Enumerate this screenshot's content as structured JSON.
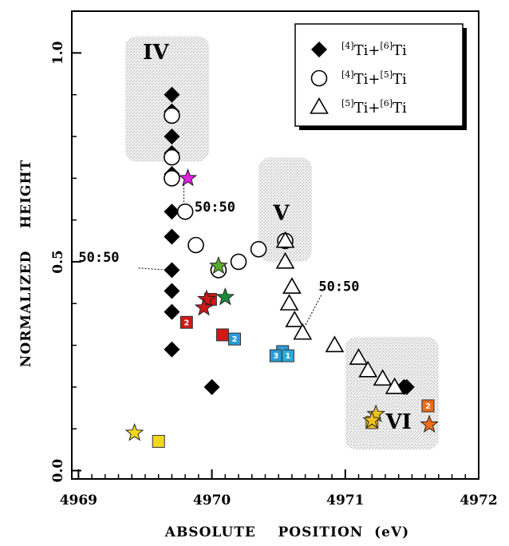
{
  "chart_data": {
    "type": "scatter",
    "xlabel": "ABSOLUTE    POSITION  (eV)",
    "ylabel": "NORMALIZED    HEIGHT",
    "xlim": [
      4968.95,
      4972.0
    ],
    "ylim": [
      -0.02,
      1.1
    ],
    "x_ticks": [
      {
        "value": 4969,
        "label": "4969"
      },
      {
        "value": 4970,
        "label": "4970"
      },
      {
        "value": 4971,
        "label": "4971"
      },
      {
        "value": 4972,
        "label": "4972"
      }
    ],
    "y_ticks": [
      {
        "value": 0.0,
        "label": "0.0"
      },
      {
        "value": 0.5,
        "label": "0.5"
      },
      {
        "value": 1.0,
        "label": "1.0"
      }
    ],
    "legend": {
      "placement": "top-right",
      "entries": [
        {
          "marker": "diamond",
          "pre1": "[4]",
          "t1": "Ti+",
          "pre2": "[6]",
          "t2": "Ti"
        },
        {
          "marker": "circle",
          "pre1": "[4]",
          "t1": "Ti+",
          "pre2": "[5]",
          "t2": "Ti"
        },
        {
          "marker": "triangle",
          "pre1": "[5]",
          "t1": "Ti+",
          "pre2": "[6]",
          "t2": "Ti"
        }
      ]
    },
    "regions": [
      {
        "label": "IV",
        "x": [
          4969.35,
          4969.98
        ],
        "y": [
          0.74,
          1.04
        ],
        "lx": 4969.58,
        "ly": 0.985
      },
      {
        "label": "V",
        "x": [
          4970.35,
          4970.75
        ],
        "y": [
          0.5,
          0.75
        ],
        "lx": 4970.52,
        "ly": 0.6
      },
      {
        "label": "VI",
        "x": [
          4971.0,
          4971.7
        ],
        "y": [
          0.05,
          0.32
        ],
        "lx": 4971.4,
        "ly": 0.1
      }
    ],
    "annotations": [
      {
        "text": "50:50",
        "x": 4969.87,
        "y": 0.62,
        "lx": 4969.79,
        "ly": 0.7,
        "lx2": 4969.79,
        "ly2": 0.63
      },
      {
        "text": "50:50",
        "x": 4969.0,
        "y": 0.5,
        "lx": 4969.45,
        "ly": 0.485,
        "lx2": 4969.68,
        "ly2": 0.48
      },
      {
        "text": "50:50",
        "x": 4970.8,
        "y": 0.43,
        "lx": 4970.82,
        "ly": 0.42,
        "lx2": 4970.67,
        "ly2": 0.33
      }
    ],
    "series": [
      {
        "name": "[4]Ti+[6]Ti",
        "marker": "diamond",
        "points": [
          [
            4969.7,
            0.9
          ],
          [
            4969.7,
            0.86
          ],
          [
            4969.7,
            0.8
          ],
          [
            4969.7,
            0.76
          ],
          [
            4969.7,
            0.71
          ],
          [
            4969.7,
            0.62
          ],
          [
            4969.7,
            0.56
          ],
          [
            4969.7,
            0.48
          ],
          [
            4969.7,
            0.43
          ],
          [
            4969.7,
            0.38
          ],
          [
            4969.7,
            0.29
          ],
          [
            4970.0,
            0.2
          ],
          [
            4971.46,
            0.2
          ],
          [
            4971.44,
            0.2
          ]
        ]
      },
      {
        "name": "[4]Ti+[5]Ti",
        "marker": "circle",
        "points": [
          [
            4969.7,
            0.85
          ],
          [
            4969.7,
            0.75
          ],
          [
            4969.7,
            0.7
          ],
          [
            4969.8,
            0.62
          ],
          [
            4969.88,
            0.54
          ],
          [
            4970.05,
            0.48
          ],
          [
            4970.2,
            0.5
          ],
          [
            4970.35,
            0.53
          ],
          [
            4970.55,
            0.55
          ]
        ]
      },
      {
        "name": "[5]Ti+[6]Ti",
        "marker": "triangle",
        "points": [
          [
            4970.55,
            0.55
          ],
          [
            4970.55,
            0.5
          ],
          [
            4970.6,
            0.44
          ],
          [
            4970.58,
            0.4
          ],
          [
            4970.62,
            0.36
          ],
          [
            4970.68,
            0.33
          ],
          [
            4970.92,
            0.3
          ],
          [
            4971.1,
            0.27
          ],
          [
            4971.17,
            0.24
          ],
          [
            4971.28,
            0.22
          ],
          [
            4971.37,
            0.2
          ]
        ]
      }
    ],
    "star_markers": [
      {
        "x": 4969.82,
        "y": 0.7,
        "color": "#e020e0"
      },
      {
        "x": 4970.05,
        "y": 0.49,
        "color": "#5aaa2a"
      },
      {
        "x": 4970.1,
        "y": 0.415,
        "color": "#1e8a3a"
      },
      {
        "x": 4969.96,
        "y": 0.41,
        "color": "#d01818"
      },
      {
        "x": 4969.94,
        "y": 0.39,
        "color": "#d01818"
      },
      {
        "x": 4969.42,
        "y": 0.09,
        "color": "#f0d820"
      },
      {
        "x": 4971.23,
        "y": 0.135,
        "color": "#f0c020"
      },
      {
        "x": 4971.2,
        "y": 0.12,
        "color": "#f0c020"
      },
      {
        "x": 4971.63,
        "y": 0.11,
        "color": "#f06a18"
      }
    ],
    "square_markers": [
      {
        "x": 4969.99,
        "y": 0.41,
        "color": "#d01818",
        "label": ""
      },
      {
        "x": 4969.81,
        "y": 0.355,
        "color": "#d01818",
        "label": "2"
      },
      {
        "x": 4970.08,
        "y": 0.325,
        "color": "#d01818",
        "label": ""
      },
      {
        "x": 4970.17,
        "y": 0.315,
        "color": "#2a9ad8",
        "label": "2"
      },
      {
        "x": 4970.53,
        "y": 0.285,
        "color": "#2a9ad8",
        "label": "1"
      },
      {
        "x": 4970.48,
        "y": 0.275,
        "color": "#2a9ad8",
        "label": "3"
      },
      {
        "x": 4970.57,
        "y": 0.275,
        "color": "#2aaad8",
        "label": "1"
      },
      {
        "x": 4969.6,
        "y": 0.07,
        "color": "#f0d820",
        "label": ""
      },
      {
        "x": 4971.2,
        "y": 0.115,
        "color": "#f0c020",
        "label": ""
      },
      {
        "x": 4971.62,
        "y": 0.155,
        "color": "#f06a18",
        "label": "2"
      }
    ]
  }
}
